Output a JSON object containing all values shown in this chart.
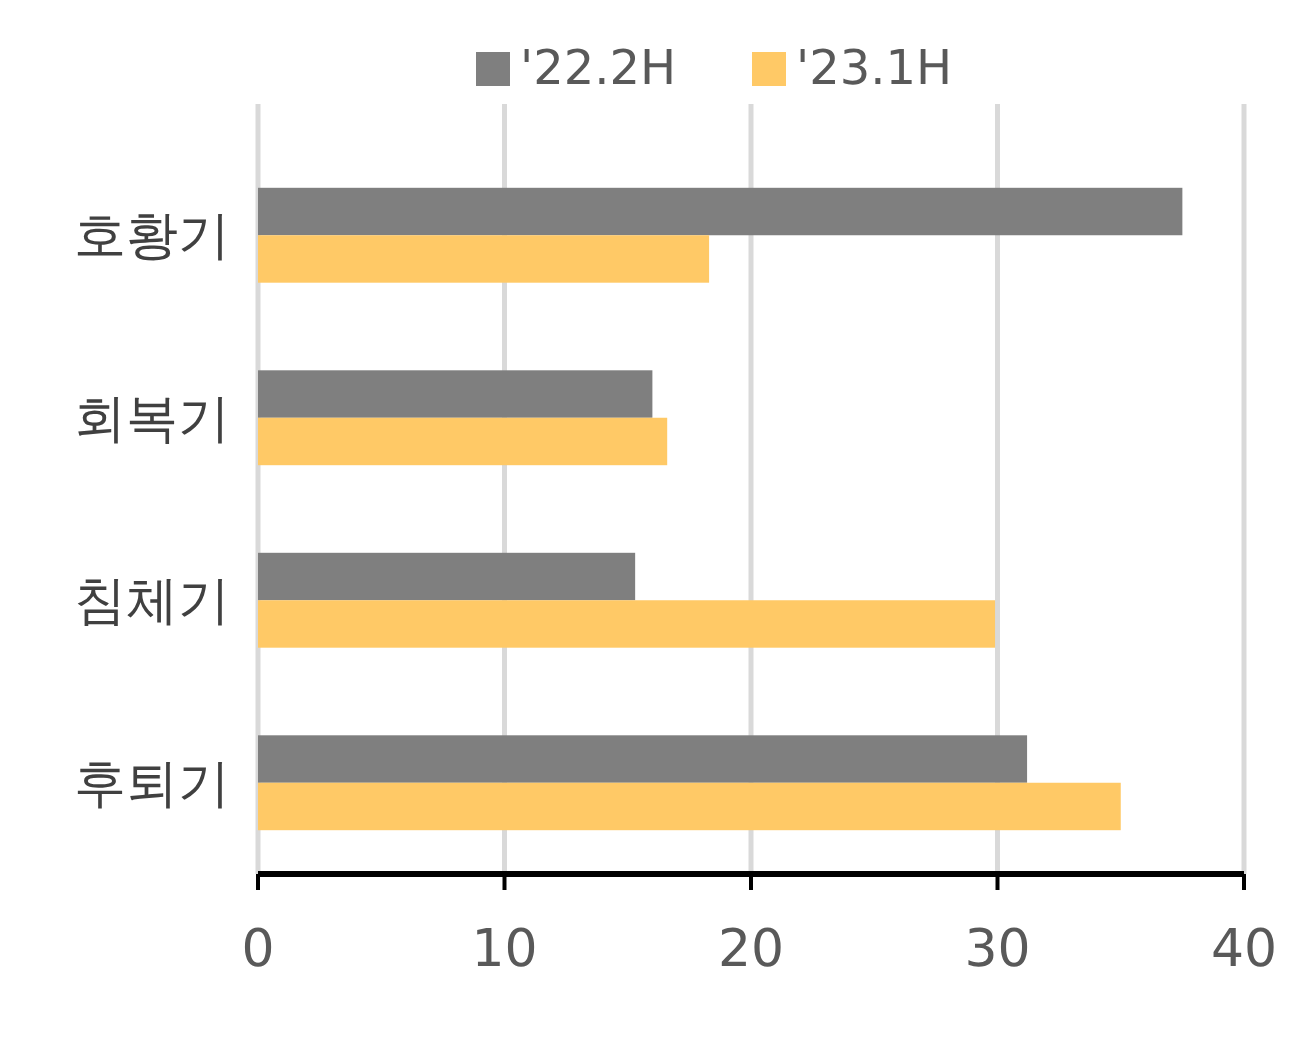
{
  "chart_data": {
    "type": "bar",
    "orientation": "horizontal",
    "categories": [
      "호황기",
      "회복기",
      "침체기",
      "후퇴기"
    ],
    "series": [
      {
        "name": "'22.2H",
        "color": "#7f7f7f",
        "values": [
          37.5,
          16,
          15.3,
          31.2
        ]
      },
      {
        "name": "'23.1H",
        "color": "#ffc966",
        "values": [
          18.3,
          16.6,
          29.9,
          35
        ]
      }
    ],
    "xlim": [
      0,
      40
    ],
    "xticks": [
      0,
      10,
      20,
      30,
      40
    ],
    "grid": "x",
    "legend": "top"
  }
}
